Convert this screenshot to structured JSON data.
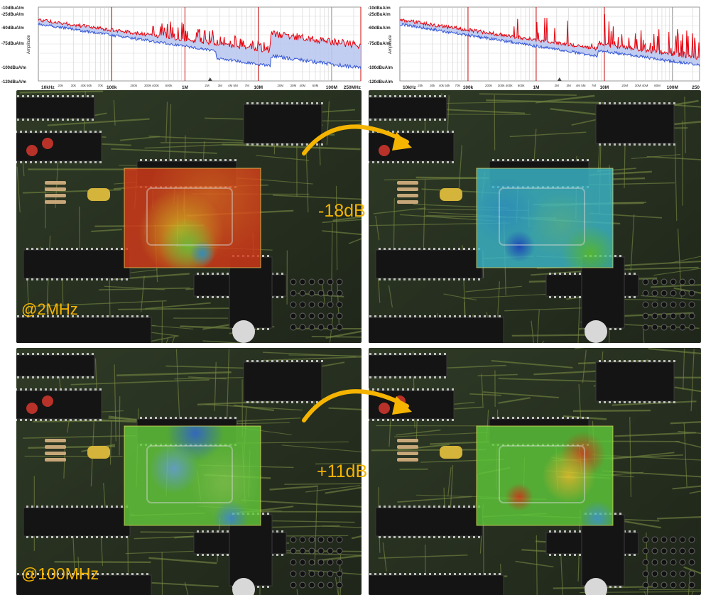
{
  "spectra": [
    {
      "y_tick_labels": [
        "-10dBuA/m",
        "-25dBuA/m",
        "-60dBuA/m",
        "-75dBuA/m",
        "-100dBuA/m",
        "-120dBuA/m"
      ],
      "y_axis_title": "Amplitude",
      "x_tick_labels_major": [
        "10kHz",
        "100k",
        "1M",
        "10M",
        "100M",
        "250MHz"
      ],
      "x_tick_labels_minor": [
        "20k",
        "30k",
        "40k 50k",
        "70k",
        "200k",
        "300k 400k",
        "600k",
        "2M",
        "3M",
        "4M 5M",
        "7M",
        "20M",
        "30M",
        "40M",
        "60M"
      ]
    },
    {
      "y_tick_labels": [
        "-10dBuA/m",
        "-25dBuA/m",
        "-60dBuA/m",
        "-75dBuA/m",
        "-100dBuA/m",
        "-120dBuA/m"
      ],
      "y_axis_title": "Amplitude",
      "x_tick_labels_major": [
        "10kHz",
        "100k",
        "1M",
        "10M",
        "100M",
        "250"
      ],
      "x_tick_labels_minor": [
        "20k",
        "30k",
        "40k 50k",
        "70k",
        "200k",
        "300k 400k",
        "600k",
        "2M",
        "3M",
        "4M 5M",
        "7M",
        "20M",
        "30M 40M",
        "60M"
      ]
    }
  ],
  "comparisons": [
    {
      "frequency_label": "@2MHz",
      "delta_label": "-18dB"
    },
    {
      "frequency_label": "@100MHz",
      "delta_label": "+11dB"
    }
  ],
  "colors": {
    "annotation": "#f5b400",
    "trace_peak": "#e8000b",
    "trace_avg": "#3557d6",
    "trace_fill": "#b7c5ee",
    "marker_line": "#d42020",
    "pcb": "#27301f"
  }
}
